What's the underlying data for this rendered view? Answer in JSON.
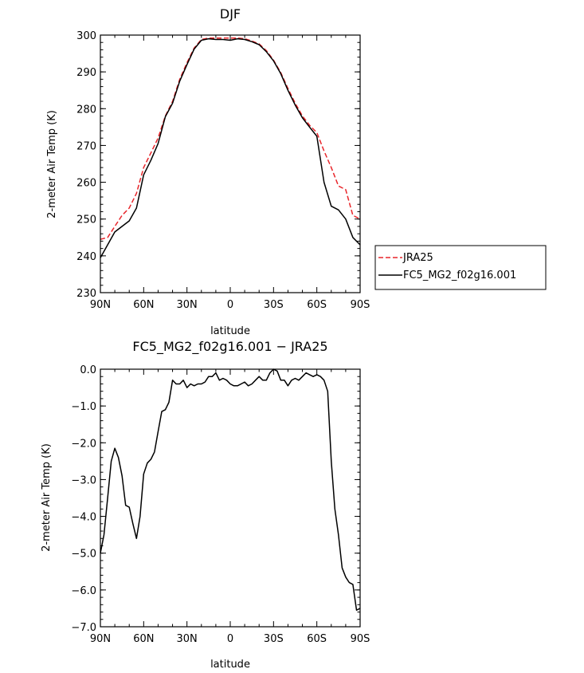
{
  "colors": {
    "model": "#000000",
    "obs": "#e8252a",
    "axes": "#000000",
    "background": "#ffffff"
  },
  "chart_data": [
    {
      "type": "line",
      "title": "DJF",
      "xlabel": "latitude",
      "ylabel": "2-meter Air Temp (K)",
      "xlim": [
        -90,
        90
      ],
      "ylim": [
        230,
        300
      ],
      "x_ticks": [
        -90,
        -60,
        -30,
        0,
        30,
        60,
        90
      ],
      "x_tick_labels": [
        "90N",
        "60N",
        "30N",
        "0",
        "30S",
        "60S",
        "90S"
      ],
      "y_ticks": [
        230,
        240,
        250,
        260,
        270,
        280,
        290,
        300
      ],
      "y_tick_labels": [
        "230",
        "240",
        "250",
        "260",
        "270",
        "280",
        "290",
        "300"
      ],
      "legend_position": "right",
      "x": [
        -90,
        -85,
        -80,
        -75,
        -70,
        -65,
        -60,
        -55,
        -50,
        -45,
        -40,
        -35,
        -30,
        -25,
        -20,
        -15,
        -10,
        -5,
        0,
        5,
        10,
        15,
        20,
        25,
        30,
        35,
        40,
        45,
        50,
        55,
        60,
        65,
        70,
        75,
        80,
        85,
        90
      ],
      "series": [
        {
          "name": "JRA25",
          "style": "dashed",
          "values": [
            244.5,
            245,
            248,
            251,
            253,
            257,
            264,
            268,
            272,
            278,
            282,
            288,
            292.5,
            296.5,
            298.8,
            299.2,
            299.2,
            299.2,
            299.2,
            299.2,
            299,
            298.4,
            297.6,
            295.8,
            293.2,
            289.8,
            285.5,
            281.5,
            278,
            275.5,
            273.5,
            268.5,
            264,
            259,
            258,
            251,
            250
          ]
        },
        {
          "name": "FC5_MG2_f02g16.001",
          "style": "solid",
          "values": [
            239.5,
            243,
            246.5,
            248,
            249.5,
            253,
            262,
            266,
            270.5,
            277.8,
            281.5,
            287.5,
            292,
            296.2,
            298.6,
            299,
            298.8,
            298.8,
            298.6,
            299,
            298.8,
            298.2,
            297.4,
            295.5,
            293,
            289.5,
            285,
            281,
            277.5,
            275,
            272.5,
            260,
            253.5,
            252.5,
            250,
            245,
            243
          ]
        }
      ]
    },
    {
      "type": "line",
      "title": "FC5_MG2_f02g16.001 − JRA25",
      "xlabel": "latitude",
      "ylabel": "2-meter Air Temp (K)",
      "xlim": [
        -90,
        90
      ],
      "ylim": [
        -7.0,
        0.0
      ],
      "x_ticks": [
        -90,
        -60,
        -30,
        0,
        30,
        60,
        90
      ],
      "x_tick_labels": [
        "90N",
        "60N",
        "30N",
        "0",
        "30S",
        "60S",
        "90S"
      ],
      "y_ticks": [
        0,
        -1,
        -2,
        -3,
        -4,
        -5,
        -6,
        -7
      ],
      "y_tick_labels": [
        "0.0",
        "−1.0",
        "−2.0",
        "−3.0",
        "−4.0",
        "−5.0",
        "−6.0",
        "−7.0"
      ],
      "x": [
        -90,
        -87.5,
        -85,
        -82.5,
        -80,
        -77.5,
        -75,
        -72.5,
        -70,
        -67.5,
        -65,
        -62.5,
        -60,
        -57.5,
        -55,
        -52.5,
        -50,
        -47.5,
        -45,
        -42.5,
        -40,
        -37.5,
        -35,
        -32.5,
        -30,
        -27.5,
        -25,
        -22.5,
        -20,
        -17.5,
        -15,
        -12.5,
        -10,
        -7.5,
        -5,
        -2.5,
        0,
        2.5,
        5,
        7.5,
        10,
        12.5,
        15,
        17.5,
        20,
        22.5,
        25,
        27.5,
        30,
        32.5,
        35,
        37.5,
        40,
        42.5,
        45,
        47.5,
        50,
        52.5,
        55,
        57.5,
        60,
        62.5,
        65,
        67.5,
        70,
        72.5,
        75,
        77.5,
        80,
        82.5,
        85,
        87.5,
        90
      ],
      "series": [
        {
          "name": "",
          "style": "solid",
          "values": [
            -5.0,
            -4.5,
            -3.5,
            -2.5,
            -2.15,
            -2.4,
            -2.9,
            -3.7,
            -3.75,
            -4.2,
            -4.6,
            -4.0,
            -2.85,
            -2.55,
            -2.45,
            -2.25,
            -1.7,
            -1.15,
            -1.1,
            -0.9,
            -0.3,
            -0.4,
            -0.4,
            -0.3,
            -0.5,
            -0.4,
            -0.45,
            -0.4,
            -0.4,
            -0.35,
            -0.2,
            -0.2,
            -0.1,
            -0.3,
            -0.25,
            -0.3,
            -0.4,
            -0.45,
            -0.45,
            -0.4,
            -0.35,
            -0.45,
            -0.4,
            -0.3,
            -0.2,
            -0.3,
            -0.3,
            -0.1,
            0.0,
            -0.05,
            -0.3,
            -0.3,
            -0.45,
            -0.3,
            -0.25,
            -0.3,
            -0.2,
            -0.1,
            -0.15,
            -0.2,
            -0.15,
            -0.2,
            -0.3,
            -0.6,
            -2.5,
            -3.8,
            -4.5,
            -5.4,
            -5.65,
            -5.8,
            -5.85,
            -6.55,
            -6.5
          ]
        }
      ]
    }
  ]
}
